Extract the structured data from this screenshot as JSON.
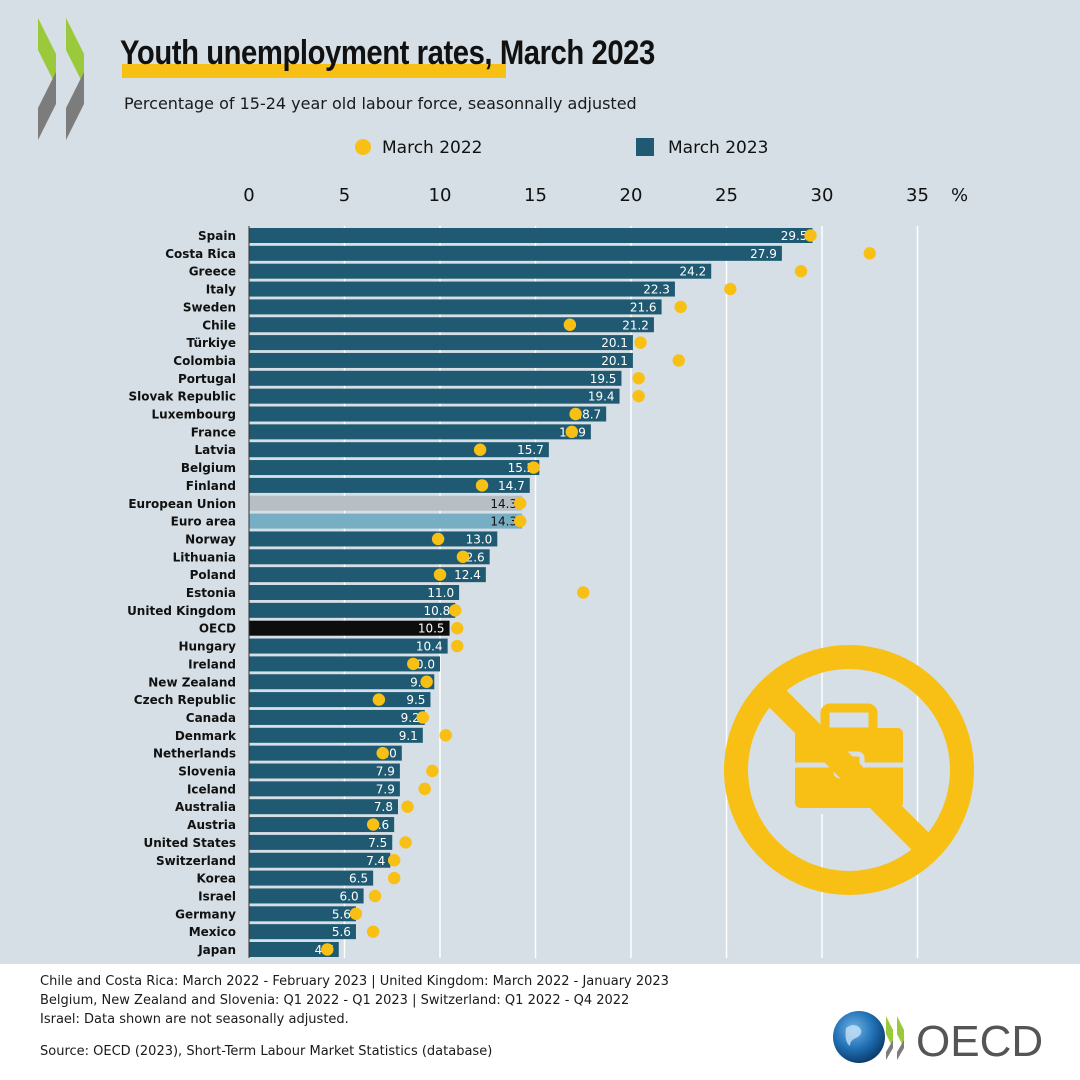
{
  "title": "Youth unemployment rates, March 2023",
  "subtitle": "Percentage of 15-24 year old labour force, seasonnally adjusted",
  "colors": {
    "background": "#d5dfe5",
    "bar": "#1f5a72",
    "bar_european_union": "#b7bfc4",
    "bar_euro_area": "#77aec4",
    "bar_oecd": "#0d0d0d",
    "dot": "#f8c015",
    "chevron_green": "#9ac93b",
    "chevron_grey": "#7c7c7c"
  },
  "chart_data": {
    "type": "bar",
    "orientation": "horizontal",
    "unit_label": "%",
    "xlim": [
      0,
      35
    ],
    "x_ticks": [
      0,
      5,
      10,
      15,
      20,
      25,
      30,
      35
    ],
    "grid": true,
    "legend_position": "top",
    "categories": [
      "Spain",
      "Costa Rica",
      "Greece",
      "Italy",
      "Sweden",
      "Chile",
      "Türkiye",
      "Colombia",
      "Portugal",
      "Slovak Republic",
      "Luxembourg",
      "France",
      "Latvia",
      "Belgium",
      "Finland",
      "European Union",
      "Euro area",
      "Norway",
      "Lithuania",
      "Poland",
      "Estonia",
      "United Kingdom",
      "OECD",
      "Hungary",
      "Ireland",
      "New Zealand",
      "Czech Republic",
      "Canada",
      "Denmark",
      "Netherlands",
      "Slovenia",
      "Iceland",
      "Australia",
      "Austria",
      "United States",
      "Switzerland",
      "Korea",
      "Israel",
      "Germany",
      "Mexico",
      "Japan"
    ],
    "series": [
      {
        "name": "March 2023",
        "mark": "bar",
        "values": [
          29.5,
          27.9,
          24.2,
          22.3,
          21.6,
          21.2,
          20.1,
          20.1,
          19.5,
          19.4,
          18.7,
          17.9,
          15.7,
          15.2,
          14.7,
          14.3,
          14.3,
          13.0,
          12.6,
          12.4,
          11.0,
          10.8,
          10.5,
          10.4,
          10.0,
          9.7,
          9.5,
          9.2,
          9.1,
          8.0,
          7.9,
          7.9,
          7.8,
          7.6,
          7.5,
          7.4,
          6.5,
          6.0,
          5.6,
          5.6,
          4.7
        ],
        "value_labels": [
          "29.5",
          "27.9",
          "24.2",
          "22.3",
          "21.6",
          "21.2",
          "20.1",
          "20.1",
          "19.5",
          "19.4",
          "18.7",
          "17.9",
          "15.7",
          "15.2",
          "14.7",
          "14.3",
          "14.3",
          "13.0",
          "12.6",
          "12.4",
          "11.0",
          "10.8",
          "10.5",
          "10.4",
          "10.0",
          "9.7",
          "9.5",
          "9.2",
          "9.1",
          "8.0",
          "7.9",
          "7.9",
          "7.8",
          "7.6",
          "7.5",
          "7.4",
          "6.5",
          "6.0",
          "5.6",
          "5.6",
          "4.7"
        ]
      },
      {
        "name": "March 2022",
        "mark": "dot",
        "values": [
          29.4,
          32.5,
          28.9,
          25.2,
          22.6,
          16.8,
          20.5,
          22.5,
          20.4,
          20.4,
          17.1,
          16.9,
          12.1,
          14.9,
          12.2,
          14.2,
          14.2,
          9.9,
          11.2,
          10.0,
          17.5,
          10.8,
          10.9,
          10.9,
          8.6,
          9.3,
          6.8,
          9.1,
          10.3,
          7.0,
          9.6,
          9.2,
          8.3,
          6.5,
          8.2,
          7.6,
          7.6,
          6.6,
          5.6,
          6.5,
          4.1
        ]
      }
    ],
    "highlighted_bars": {
      "European Union": "bar_european_union",
      "Euro area": "bar_euro_area",
      "OECD": "bar_oecd"
    }
  },
  "notes": [
    "Chile and Costa Rica:  March 2022 - February 2023 | United Kingdom:  March 2022 - January 2023",
    "Belgium, New Zealand and Slovenia:  Q1 2022 - Q1 2023 | Switzerland:  Q1 2022 - Q4 2022",
    "Israel:  Data shown are not seasonally adjusted."
  ],
  "source": "Source: OECD (2023), Short-Term Labour Market Statistics (database)",
  "logo_text": "OECD",
  "decorative_icon": "no-briefcase-icon"
}
